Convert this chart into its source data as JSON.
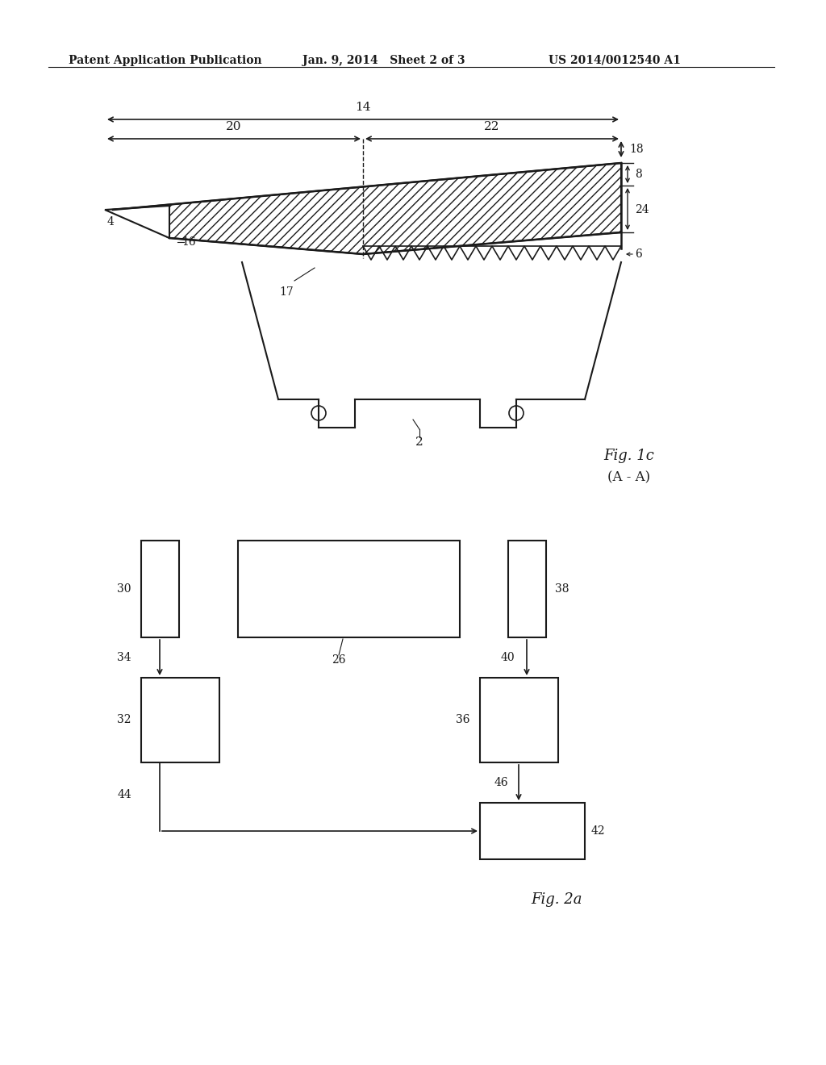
{
  "bg_color": "#ffffff",
  "header_left": "Patent Application Publication",
  "header_mid": "Jan. 9, 2014   Sheet 2 of 3",
  "header_right": "US 2014/0012540 A1",
  "fig1c_label": "Fig. 1c",
  "fig1c_sub": "(A - A)",
  "fig2a_label": "Fig. 2a",
  "text_color": "#1a1a1a",
  "line_color": "#1a1a1a"
}
